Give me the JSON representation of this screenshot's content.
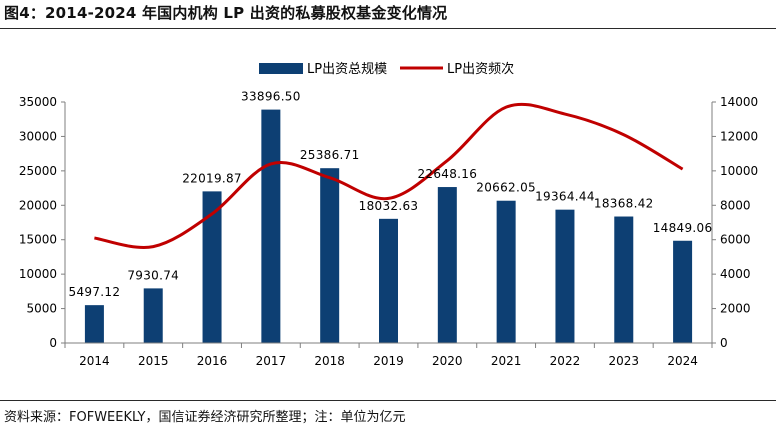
{
  "header": {
    "title": "图4：2014-2024 年国内机构 LP 出资的私募股权基金变化情况"
  },
  "footer": {
    "source": "资料来源：FOFWEEKLY，国信证券经济研究所整理；注：单位为亿元"
  },
  "colors": {
    "bar": "#0d3f73",
    "line": "#c00000",
    "axis": "#7f7f7f"
  },
  "chart_data": {
    "type": "bar",
    "categories": [
      "2014",
      "2015",
      "2016",
      "2017",
      "2018",
      "2019",
      "2020",
      "2021",
      "2022",
      "2023",
      "2024"
    ],
    "series": [
      {
        "name": "LP出资总规模",
        "type": "bar",
        "axis": "left",
        "values": [
          5497.12,
          7930.74,
          22019.87,
          33896.5,
          25386.71,
          18032.63,
          22648.16,
          20662.05,
          19364.44,
          18368.42,
          14849.06
        ],
        "labels": [
          "5497.12",
          "7930.74",
          "22019.87",
          "33896.50",
          "25386.71",
          "18032.63",
          "22648.16",
          "20662.05",
          "19364.44",
          "18368.42",
          "14849.06"
        ]
      },
      {
        "name": "LP出资频次",
        "type": "line",
        "axis": "right",
        "values": [
          6100,
          5600,
          7500,
          10400,
          9600,
          8400,
          10600,
          13700,
          13300,
          12100,
          10100
        ]
      }
    ],
    "y_left": {
      "min": 0,
      "max": 35000,
      "ticks": [
        "0",
        "5000",
        "10000",
        "15000",
        "20000",
        "25000",
        "30000",
        "35000"
      ]
    },
    "y_right": {
      "min": 0,
      "max": 14000,
      "ticks": [
        "0",
        "2000",
        "4000",
        "6000",
        "8000",
        "10000",
        "12000",
        "14000"
      ]
    },
    "legend_position": "top-center",
    "grid": false
  }
}
